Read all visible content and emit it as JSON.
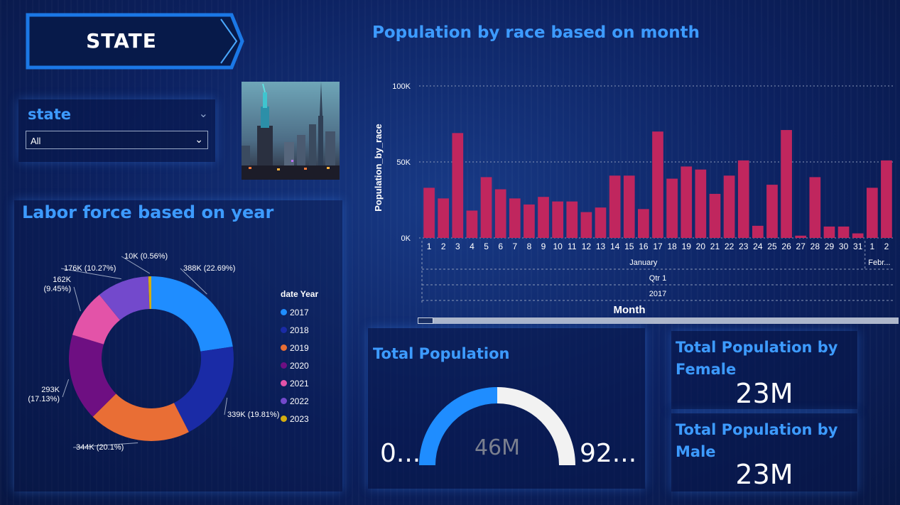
{
  "header": {
    "title": "STATE"
  },
  "slicer": {
    "title": "state",
    "value": "All"
  },
  "labor": {
    "title": "Labor force based on year",
    "legend_title": "date Year",
    "chart_data": {
      "type": "pie",
      "title": "Labor force based on year",
      "legend_title": "date Year",
      "legend_position": "right",
      "categories": [
        "2017",
        "2018",
        "2019",
        "2020",
        "2021",
        "2022",
        "2023"
      ],
      "values": [
        388000,
        339000,
        344000,
        293000,
        162000,
        176000,
        10000
      ],
      "percent": [
        22.69,
        19.81,
        20.1,
        17.13,
        9.45,
        10.27,
        0.56
      ],
      "data_labels": [
        "388K (22.69%)",
        "339K (19.81%)",
        "344K (20.1%)",
        "293K (17.13%)",
        "162K (9.45%)",
        "176K (10.27%)",
        "10K (0.56%)"
      ],
      "colors": [
        "#1f8dff",
        "#1a2ba6",
        "#e96e35",
        "#6e0f82",
        "#e353a8",
        "#7349cc",
        "#d4ad10"
      ]
    }
  },
  "population": {
    "title": "Population by race based on month",
    "chart_data": {
      "type": "bar",
      "title": "Population by race based on month",
      "ylabel": "Population_by_race",
      "xlabel": "Month",
      "ylim": [
        0,
        100000
      ],
      "y_ticks": [
        "0K",
        "50K",
        "100K"
      ],
      "grid": true,
      "categories": [
        "1",
        "2",
        "3",
        "4",
        "5",
        "6",
        "7",
        "8",
        "9",
        "10",
        "11",
        "12",
        "13",
        "14",
        "15",
        "16",
        "17",
        "18",
        "19",
        "20",
        "21",
        "22",
        "23",
        "24",
        "25",
        "26",
        "27",
        "28",
        "29",
        "30",
        "31",
        "1",
        "2"
      ],
      "values": [
        33000,
        26000,
        69000,
        18000,
        40000,
        32000,
        26000,
        22000,
        27000,
        24000,
        24000,
        17000,
        20000,
        41000,
        41000,
        19000,
        70000,
        39000,
        47000,
        45000,
        29000,
        41000,
        51000,
        8000,
        35000,
        71000,
        1500,
        40000,
        7500,
        7500,
        3000,
        33000,
        51000
      ],
      "bar_color": "#c0265e",
      "hierarchy": {
        "month_january": "January",
        "month_february": "Febr...",
        "quarter": "Qtr 1",
        "year": "2017"
      }
    }
  },
  "total": {
    "title": "Total Population",
    "value": "46M",
    "min_label": "0...",
    "max_label": "92...",
    "fill_fraction": 0.5
  },
  "female": {
    "title": "Total Population by Female",
    "value": "23M"
  },
  "male": {
    "title": "Total Population by Male",
    "value": "23M"
  },
  "colors": {
    "accent": "#3d9bff",
    "gauge_fill": "#1f8dff",
    "gauge_empty": "#f2f2f2"
  }
}
